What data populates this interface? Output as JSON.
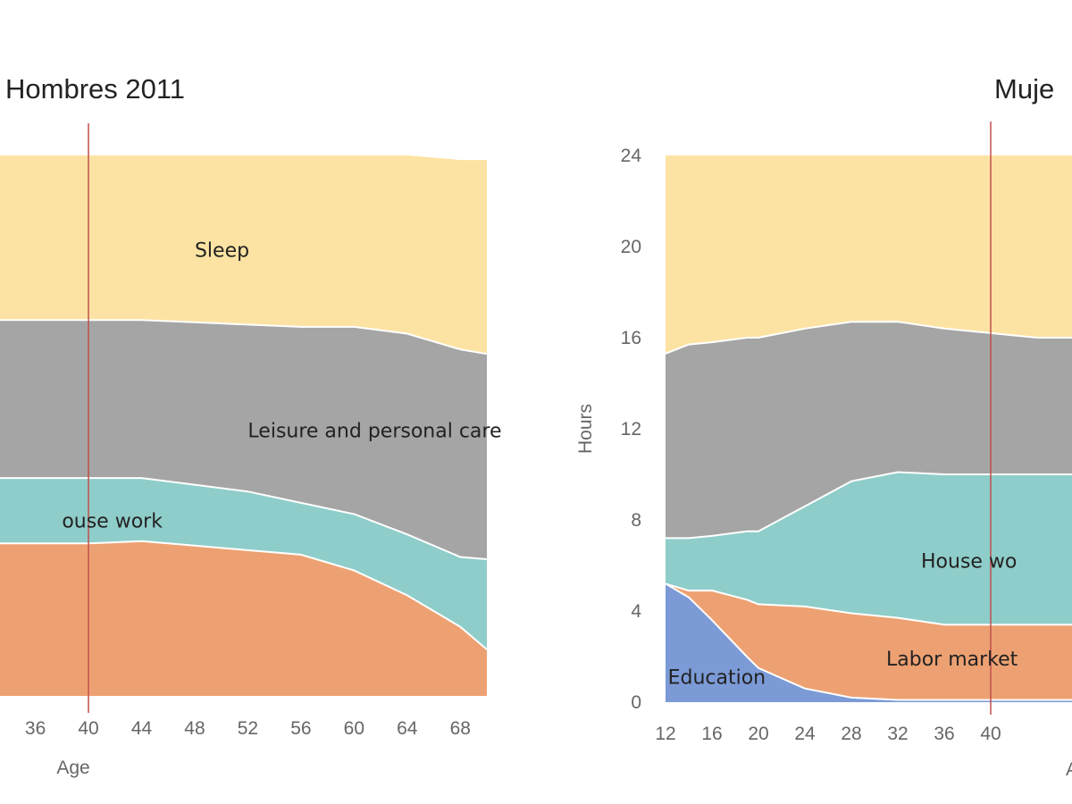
{
  "colors": {
    "sleep": "#fde3a3",
    "leisure": "#a5a5a5",
    "housework": "#8ecdc9",
    "labor": "#eda172",
    "education": "#7b9ad6",
    "marker": "#c0504d"
  },
  "chart_data": [
    {
      "type": "area",
      "title": "Hombres 2011",
      "xlabel": "Age",
      "ylabel": "",
      "ylim": [
        0,
        24
      ],
      "xlim": [
        33,
        70
      ],
      "xticks": [
        "36",
        "40",
        "44",
        "48",
        "52",
        "56",
        "60",
        "64",
        "68"
      ],
      "yticks": [],
      "marker_age": 40,
      "x": [
        33,
        36,
        40,
        44,
        48,
        52,
        56,
        60,
        64,
        68,
        70
      ],
      "series": [
        {
          "name": "Education",
          "key": "education",
          "values": [
            0,
            0,
            0,
            0,
            0,
            0,
            0,
            0,
            0,
            0,
            0
          ]
        },
        {
          "name": "Labor market",
          "key": "labor",
          "values": [
            6.8,
            6.8,
            6.8,
            6.9,
            6.7,
            6.5,
            6.3,
            5.6,
            4.5,
            3.1,
            2.1
          ]
        },
        {
          "name": "House work",
          "key": "housework",
          "values": [
            2.9,
            2.9,
            2.9,
            2.8,
            2.7,
            2.6,
            2.3,
            2.5,
            2.7,
            3.1,
            4.0
          ]
        },
        {
          "name": "Leisure and personal care",
          "key": "leisure",
          "values": [
            7.0,
            7.0,
            7.0,
            7.0,
            7.2,
            7.4,
            7.8,
            8.3,
            8.9,
            9.2,
            9.1
          ]
        },
        {
          "name": "Sleep",
          "key": "sleep",
          "values": [
            7.3,
            7.3,
            7.3,
            7.3,
            7.4,
            7.5,
            7.6,
            7.6,
            7.9,
            8.4,
            8.6
          ]
        }
      ],
      "labels": [
        {
          "key": "sleep",
          "text": "Sleep",
          "x": 48,
          "y": 19.5
        },
        {
          "key": "leisure",
          "text": "Leisure and personal care",
          "x": 52,
          "y": 11.5
        },
        {
          "key": "housework",
          "text": "ouse work",
          "x": 38,
          "y": 7.5
        }
      ]
    },
    {
      "type": "area",
      "title": "Muje",
      "xlabel": "A",
      "ylabel": "Hours",
      "ylim": [
        0,
        24
      ],
      "xlim": [
        12,
        47
      ],
      "xticks": [
        "12",
        "16",
        "20",
        "24",
        "28",
        "32",
        "36",
        "40"
      ],
      "yticks": [
        "0",
        "4",
        "8",
        "12",
        "16",
        "20",
        "24"
      ],
      "marker_age": 40,
      "x": [
        12,
        14,
        16,
        19,
        20,
        24,
        28,
        32,
        36,
        40,
        44,
        47
      ],
      "series": [
        {
          "name": "Education",
          "key": "education",
          "values": [
            5.2,
            4.6,
            3.6,
            2.0,
            1.5,
            0.6,
            0.2,
            0.1,
            0.1,
            0.1,
            0.1,
            0.1
          ]
        },
        {
          "name": "Labor market",
          "key": "labor",
          "values": [
            0.0,
            0.3,
            1.3,
            2.5,
            2.8,
            3.6,
            3.7,
            3.6,
            3.3,
            3.3,
            3.3,
            3.3
          ]
        },
        {
          "name": "House work",
          "key": "housework",
          "values": [
            2.0,
            2.3,
            2.4,
            3.0,
            3.2,
            4.4,
            5.8,
            6.4,
            6.6,
            6.6,
            6.6,
            6.6
          ]
        },
        {
          "name": "Leisure and personal care",
          "key": "leisure",
          "values": [
            8.1,
            8.5,
            8.5,
            8.5,
            8.5,
            7.8,
            7.0,
            6.6,
            6.4,
            6.2,
            6.0,
            6.0
          ]
        },
        {
          "name": "Sleep",
          "key": "sleep",
          "values": [
            8.7,
            8.3,
            8.2,
            8.0,
            8.0,
            7.6,
            7.3,
            7.3,
            7.6,
            7.8,
            8.0,
            8.0
          ]
        }
      ],
      "labels": [
        {
          "key": "housework",
          "text": "House wo",
          "x": 34,
          "y": 5.9
        },
        {
          "key": "labor",
          "text": "Labor market",
          "x": 31,
          "y": 1.6
        },
        {
          "key": "education",
          "text": "Education",
          "x": 12.2,
          "y": 0.8
        }
      ]
    }
  ]
}
